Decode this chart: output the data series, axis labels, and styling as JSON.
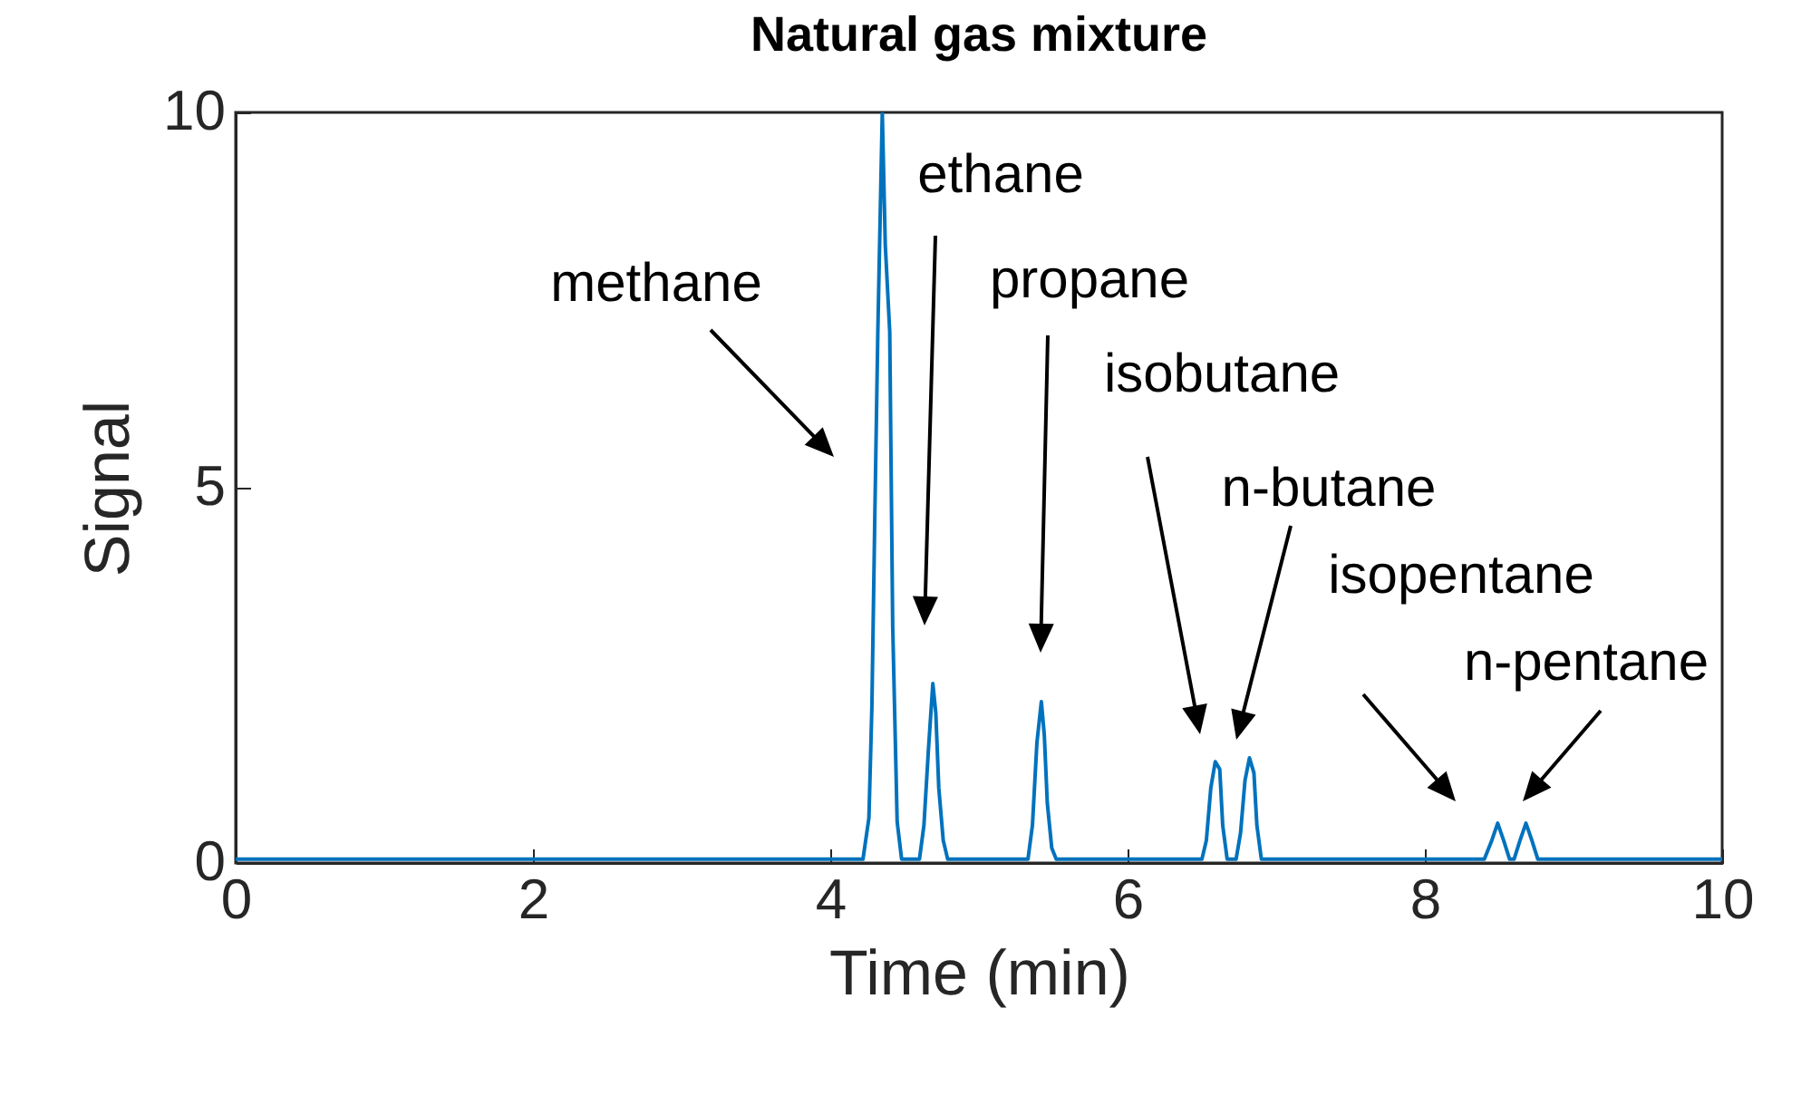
{
  "chart_data": {
    "type": "line",
    "title": "Natural gas mixture",
    "xlabel": "Time (min)",
    "ylabel": "Signal",
    "xlim": [
      0,
      10
    ],
    "xticks": [
      0,
      2,
      4,
      6,
      8,
      10
    ],
    "ylim": [
      0,
      10
    ],
    "yticks": [
      0,
      5,
      10
    ],
    "grid": false,
    "marker": "none",
    "line_style": "solid",
    "series": [
      {
        "color": "#0072bd",
        "x": [
          0,
          4.22,
          4.26,
          4.28,
          4.3,
          4.32,
          4.35,
          4.37,
          4.4,
          4.42,
          4.45,
          4.48,
          4.6,
          4.63,
          4.66,
          4.69,
          4.71,
          4.73,
          4.76,
          4.79,
          5.33,
          5.36,
          5.39,
          5.42,
          5.44,
          5.46,
          5.49,
          5.52,
          6.5,
          6.53,
          6.56,
          6.59,
          6.62,
          6.64,
          6.67,
          6.73,
          6.76,
          6.79,
          6.82,
          6.85,
          6.87,
          6.9,
          8.4,
          8.45,
          8.49,
          8.53,
          8.57,
          8.6,
          8.64,
          8.68,
          8.72,
          8.76,
          10
        ],
        "values": [
          0.05,
          0.05,
          0.6,
          2.08,
          4.66,
          7.08,
          10,
          8.24,
          7.08,
          3.16,
          0.55,
          0.05,
          0.05,
          0.5,
          1.5,
          2.39,
          2.0,
          1.0,
          0.3,
          0.05,
          0.05,
          0.5,
          1.6,
          2.15,
          1.7,
          0.8,
          0.2,
          0.05,
          0.05,
          0.3,
          1.0,
          1.35,
          1.25,
          0.5,
          0.05,
          0.05,
          0.4,
          1.1,
          1.4,
          1.2,
          0.5,
          0.05,
          0.05,
          0.3,
          0.53,
          0.3,
          0.05,
          0.05,
          0.3,
          0.53,
          0.3,
          0.05,
          0.05
        ]
      }
    ],
    "annotations": [
      "methane",
      "ethane",
      "propane",
      "isobutane",
      "n-butane",
      "isopentane",
      "n-pentane"
    ]
  }
}
